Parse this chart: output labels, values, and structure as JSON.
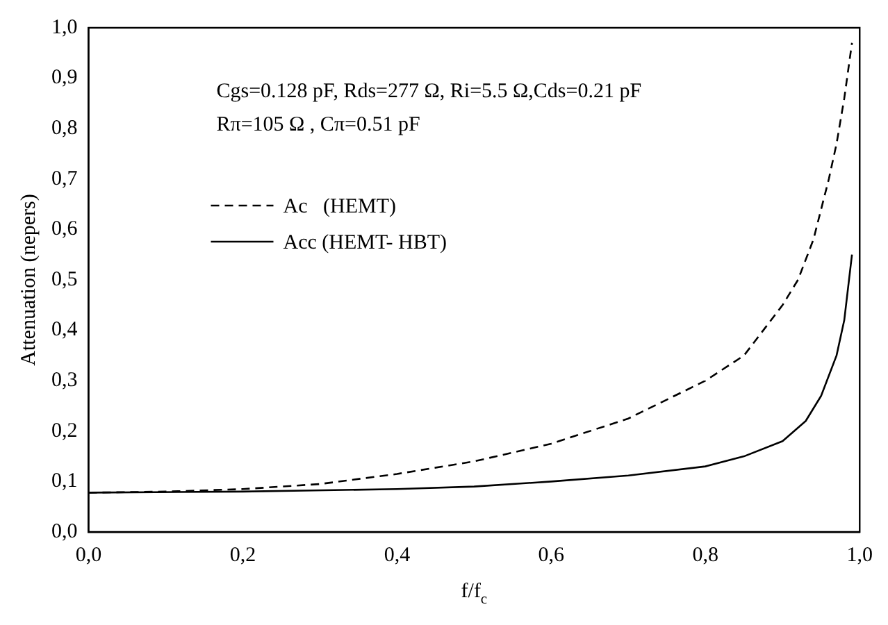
{
  "chart_data": {
    "type": "line",
    "xlabel": "f/f$_{c}$",
    "ylabel": "Attenuation (nepers)",
    "annotations": [
      "Cgs=0.128 pF, Rds=277 Ω, Ri=5.5 Ω,Cds=0.21 pF",
      "Rπ=105 Ω , Cπ=0.51 pF"
    ],
    "series": [
      {
        "name": "Ac   (HEMT)",
        "color": "#000000",
        "line_style": "dashed",
        "x": [
          0,
          0.1,
          0.2,
          0.3,
          0.4,
          0.5,
          0.6,
          0.7,
          0.8,
          0.85,
          0.9,
          0.92,
          0.94,
          0.96,
          0.97,
          0.98,
          0.99
        ],
        "values": [
          0.078,
          0.08,
          0.085,
          0.095,
          0.115,
          0.14,
          0.175,
          0.225,
          0.3,
          0.35,
          0.45,
          0.5,
          0.58,
          0.7,
          0.77,
          0.86,
          0.97
        ]
      },
      {
        "name": "Acc (HEMT- HBT)",
        "color": "#000000",
        "line_style": "solid",
        "x": [
          0,
          0.2,
          0.4,
          0.5,
          0.6,
          0.7,
          0.8,
          0.85,
          0.9,
          0.93,
          0.95,
          0.97,
          0.98,
          0.99
        ],
        "values": [
          0.078,
          0.08,
          0.085,
          0.09,
          0.1,
          0.112,
          0.13,
          0.15,
          0.18,
          0.22,
          0.27,
          0.35,
          0.42,
          0.55
        ]
      }
    ],
    "xlim": [
      0,
      1
    ],
    "xticks": [
      {
        "value": 0,
        "label": "0,0"
      },
      {
        "value": 0.2,
        "label": "0,2"
      },
      {
        "value": 0.4,
        "label": "0,4"
      },
      {
        "value": 0.6,
        "label": "0,6"
      },
      {
        "value": 0.8,
        "label": "0,8"
      },
      {
        "value": 1,
        "label": "1,0"
      }
    ],
    "ylim": [
      0,
      1
    ],
    "yticks": [
      {
        "value": 0,
        "label": "0,0"
      },
      {
        "value": 0.1,
        "label": "0,1"
      },
      {
        "value": 0.2,
        "label": "0,2"
      },
      {
        "value": 0.3,
        "label": "0,3"
      },
      {
        "value": 0.4,
        "label": "0,4"
      },
      {
        "value": 0.5,
        "label": "0,5"
      },
      {
        "value": 0.6,
        "label": "0,6"
      },
      {
        "value": 0.7,
        "label": "0,7"
      },
      {
        "value": 0.8,
        "label": "0,8"
      },
      {
        "value": 0.9,
        "label": "0,9"
      },
      {
        "value": 1,
        "label": "1,0"
      }
    ],
    "grid": false,
    "legend": "top left",
    "marker": "none"
  }
}
